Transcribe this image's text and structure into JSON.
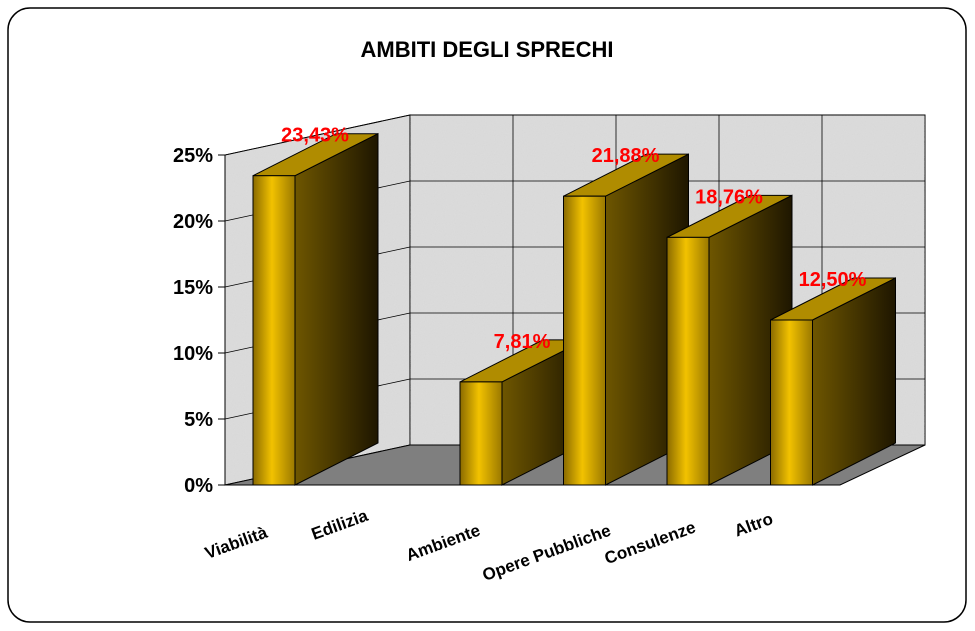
{
  "chart_data": {
    "type": "bar3d",
    "title": "AMBITI DEGLI SPRECHI",
    "categories": [
      "Viabilità",
      "Edilizia",
      "Ambiente",
      "Opere Pubbliche",
      "Consulenze",
      "Altro"
    ],
    "values": [
      23.43,
      0,
      7.81,
      21.88,
      18.76,
      12.5
    ],
    "value_labels": [
      "23,43%",
      null,
      "7,81%",
      "21,88%",
      "18,76%",
      "12,50%"
    ],
    "color": "#f2c200",
    "ylim": [
      0,
      25
    ],
    "yticks": [
      {
        "value": 0,
        "label": "0%"
      },
      {
        "value": 5,
        "label": "5%"
      },
      {
        "value": 10,
        "label": "10%"
      },
      {
        "value": 15,
        "label": "15%"
      },
      {
        "value": 20,
        "label": "20%"
      },
      {
        "value": 25,
        "label": "25%"
      }
    ],
    "grid": true
  }
}
